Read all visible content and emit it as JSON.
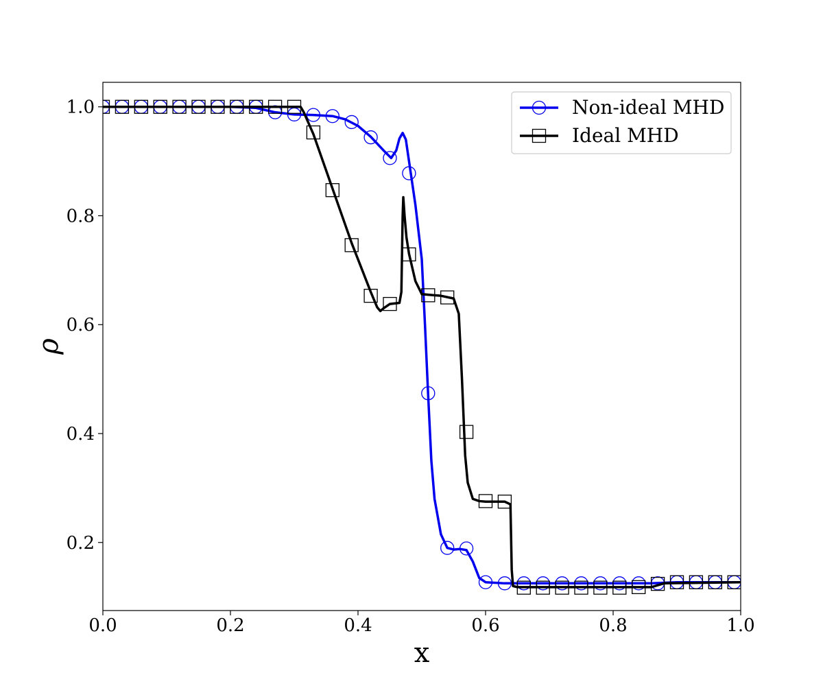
{
  "chart_data": {
    "type": "line",
    "title": "",
    "xlabel": "x",
    "ylabel": "ρ",
    "xlim": [
      0.0,
      1.0
    ],
    "ylim": [
      0.075,
      1.045
    ],
    "xticks": [
      0.0,
      0.2,
      0.4,
      0.6,
      0.8,
      1.0
    ],
    "xtick_labels": [
      "0.0",
      "0.2",
      "0.4",
      "0.6",
      "0.8",
      "1.0"
    ],
    "yticks": [
      0.2,
      0.4,
      0.6,
      0.8,
      1.0
    ],
    "ytick_labels": [
      "0.2",
      "0.4",
      "0.6",
      "0.8",
      "1.0"
    ],
    "grid": false,
    "legend_position": "top-right",
    "series": [
      {
        "name": "Non-ideal MHD",
        "color": "#0000ee",
        "marker": "circle",
        "line_x": [
          0.0,
          0.2,
          0.24,
          0.27,
          0.3,
          0.33,
          0.36,
          0.38,
          0.4,
          0.42,
          0.44,
          0.452,
          0.46,
          0.465,
          0.47,
          0.475,
          0.48,
          0.49,
          0.5,
          0.505,
          0.51,
          0.515,
          0.52,
          0.53,
          0.54,
          0.55,
          0.56,
          0.57,
          0.58,
          0.59,
          0.6,
          0.63,
          0.7,
          0.8,
          0.86,
          0.88,
          0.9,
          1.0
        ],
        "line_y": [
          1.0,
          1.0,
          0.998,
          0.99,
          0.986,
          0.985,
          0.983,
          0.977,
          0.965,
          0.945,
          0.92,
          0.906,
          0.92,
          0.942,
          0.952,
          0.94,
          0.9,
          0.82,
          0.72,
          0.6,
          0.47,
          0.35,
          0.28,
          0.215,
          0.19,
          0.187,
          0.188,
          0.186,
          0.165,
          0.135,
          0.127,
          0.125,
          0.125,
          0.125,
          0.125,
          0.126,
          0.127,
          0.127
        ],
        "marker_x": [
          0.0,
          0.03,
          0.06,
          0.09,
          0.12,
          0.15,
          0.18,
          0.21,
          0.24,
          0.27,
          0.3,
          0.33,
          0.36,
          0.39,
          0.42,
          0.45,
          0.48,
          0.51,
          0.54,
          0.57,
          0.6,
          0.63,
          0.66,
          0.69,
          0.72,
          0.75,
          0.78,
          0.81,
          0.84,
          0.87,
          0.9,
          0.93,
          0.96,
          0.99
        ],
        "marker_y": [
          1.0,
          1.0,
          1.0,
          1.0,
          1.0,
          1.0,
          1.0,
          1.0,
          1.0,
          0.99,
          0.986,
          0.985,
          0.983,
          0.972,
          0.944,
          0.906,
          0.878,
          0.474,
          0.19,
          0.189,
          0.127,
          0.125,
          0.125,
          0.125,
          0.125,
          0.125,
          0.125,
          0.125,
          0.125,
          0.125,
          0.127,
          0.127,
          0.127,
          0.127
        ]
      },
      {
        "name": "Ideal MHD",
        "color": "#000000",
        "marker": "square",
        "line_x": [
          0.0,
          0.31,
          0.315,
          0.33,
          0.36,
          0.39,
          0.42,
          0.43,
          0.435,
          0.44,
          0.45,
          0.465,
          0.468,
          0.47,
          0.471,
          0.473,
          0.476,
          0.48,
          0.49,
          0.5,
          0.51,
          0.53,
          0.55,
          0.558,
          0.563,
          0.568,
          0.572,
          0.58,
          0.59,
          0.6,
          0.63,
          0.639,
          0.641,
          0.643,
          0.65,
          0.8,
          0.86,
          0.88,
          1.0
        ],
        "line_y": [
          1.0,
          1.0,
          0.99,
          0.95,
          0.85,
          0.75,
          0.66,
          0.632,
          0.625,
          0.63,
          0.638,
          0.64,
          0.66,
          0.8,
          0.834,
          0.8,
          0.76,
          0.73,
          0.68,
          0.656,
          0.655,
          0.653,
          0.648,
          0.62,
          0.5,
          0.36,
          0.31,
          0.28,
          0.276,
          0.275,
          0.275,
          0.27,
          0.15,
          0.12,
          0.118,
          0.118,
          0.118,
          0.125,
          0.127
        ],
        "marker_x": [
          0.0,
          0.03,
          0.06,
          0.09,
          0.12,
          0.15,
          0.18,
          0.21,
          0.24,
          0.27,
          0.3,
          0.33,
          0.36,
          0.39,
          0.42,
          0.45,
          0.48,
          0.51,
          0.54,
          0.57,
          0.6,
          0.63,
          0.66,
          0.69,
          0.72,
          0.75,
          0.78,
          0.81,
          0.84,
          0.87,
          0.9,
          0.93,
          0.96,
          0.99
        ],
        "marker_y": [
          1.0,
          1.0,
          1.0,
          1.0,
          1.0,
          1.0,
          1.0,
          1.0,
          1.0,
          1.0,
          1.0,
          0.953,
          0.847,
          0.746,
          0.653,
          0.638,
          0.729,
          0.654,
          0.65,
          0.403,
          0.276,
          0.275,
          0.117,
          0.117,
          0.117,
          0.117,
          0.117,
          0.117,
          0.118,
          0.124,
          0.127,
          0.127,
          0.127,
          0.127
        ]
      }
    ]
  }
}
